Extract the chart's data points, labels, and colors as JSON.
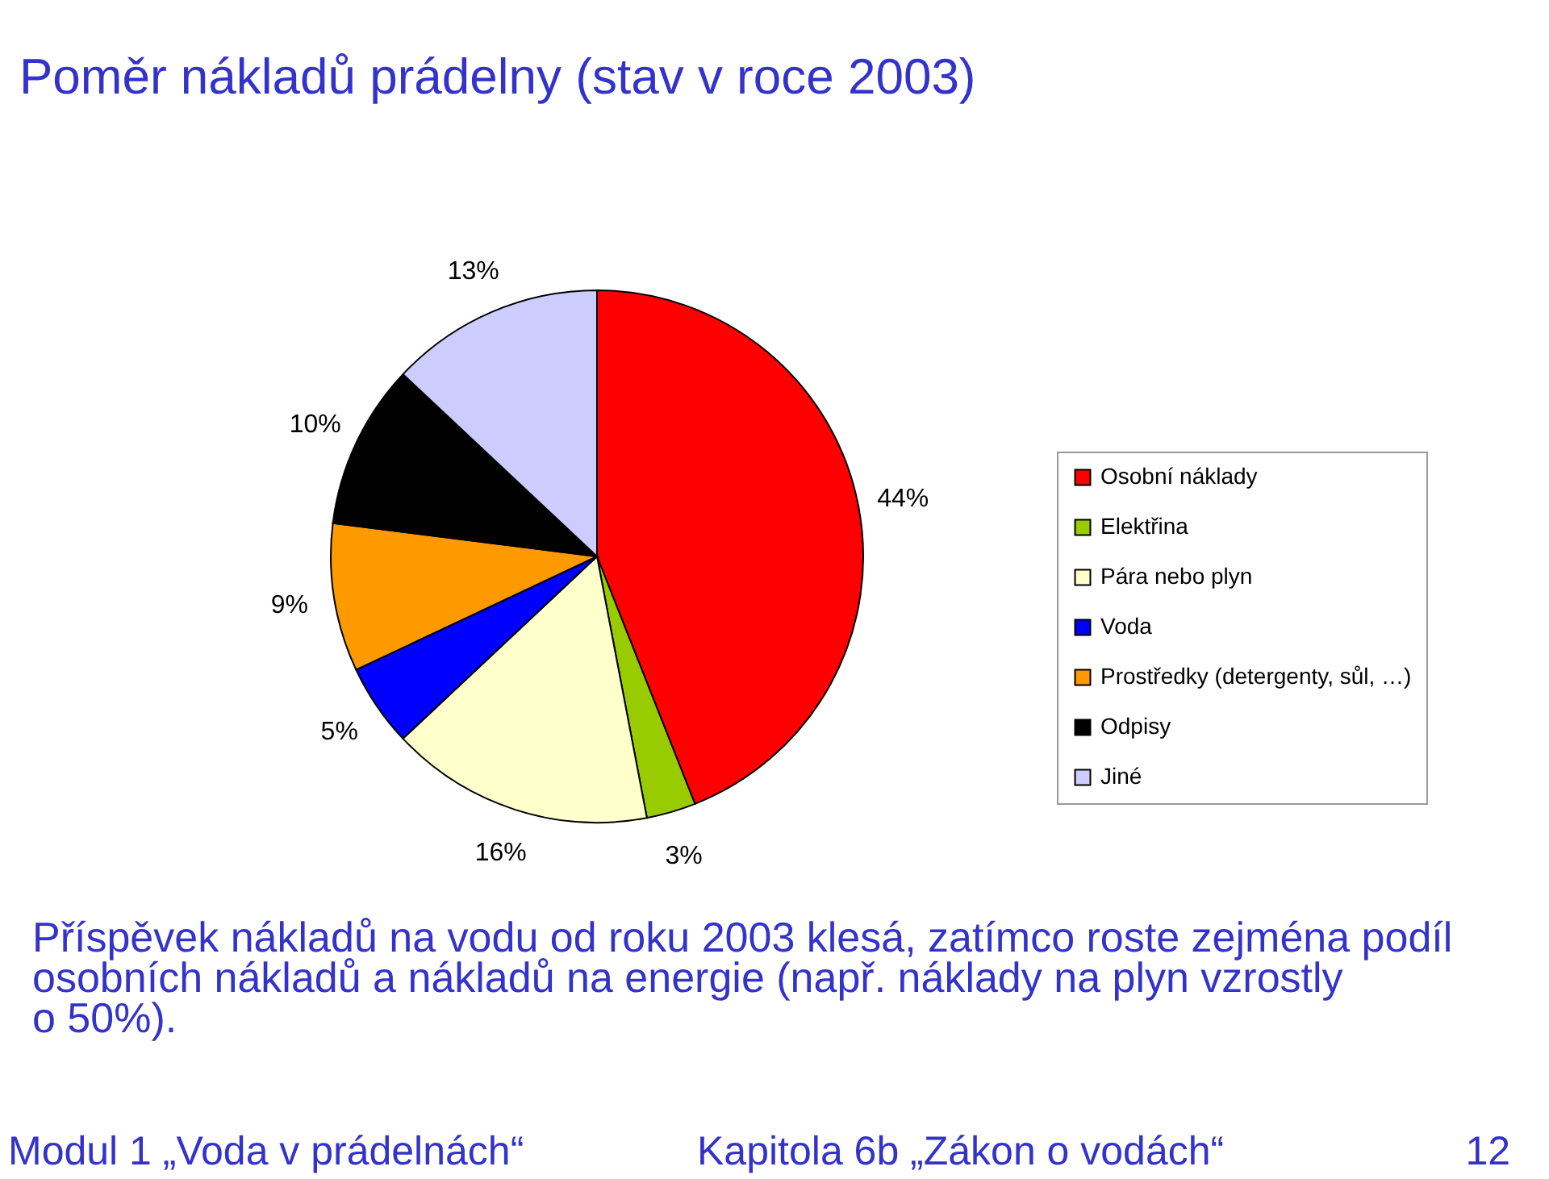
{
  "chart_data": {
    "type": "pie",
    "title": "Poměr nákladů prádelny (stav v roce 2003)",
    "categories": [
      "Osobní náklady",
      "Elektřina",
      "Pára nebo plyn",
      "Voda",
      "Prostředky (detergenty, sůl, …)",
      "Odpisy",
      "Jiné"
    ],
    "values": [
      44,
      3,
      16,
      5,
      9,
      10,
      13
    ],
    "colors": [
      "#ff0000",
      "#99cc00",
      "#ffffcc",
      "#0000ff",
      "#ff9900",
      "#000000",
      "#ccccff"
    ],
    "value_labels": [
      "44%",
      "3%",
      "16%",
      "5%",
      "9%",
      "10%",
      "13%"
    ],
    "legend": "right",
    "annotations": [
      "Příspěvek nákladů na vodu od roku 2003 klesá, zatímco roste zejména podíl osobních nákladů a nákladů na energie (např. náklady na plyn vzrostly o 50%).",
      "Modul 1 „Voda v prádelnách“",
      "Kapitola 6b „Zákon o vodách“",
      "12"
    ]
  }
}
